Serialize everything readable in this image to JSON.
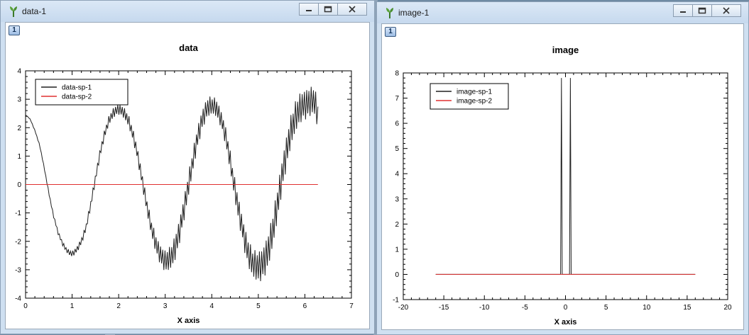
{
  "windows": [
    {
      "title": "data-1",
      "layer_label": "1",
      "graph_title": "data",
      "xlabel": "X axis"
    },
    {
      "title": "image-1",
      "layer_label": "1",
      "graph_title": "image",
      "xlabel": "X axis"
    }
  ],
  "chart_data": [
    {
      "type": "line",
      "title": "data",
      "xlabel": "X axis",
      "ylabel": "",
      "xlim": [
        0,
        7
      ],
      "ylim": [
        -4,
        4
      ],
      "xticks": [
        "0",
        "1",
        "2",
        "3",
        "4",
        "5",
        "6",
        "7"
      ],
      "yticks": [
        "-4",
        "-3",
        "-2",
        "-1",
        "0",
        "1",
        "2",
        "3",
        "4"
      ],
      "grid": false,
      "legend_position": "top-left",
      "series": [
        {
          "name": "data-sp-1",
          "color": "#202020",
          "x": [
            0,
            0.1,
            0.2,
            0.3,
            0.4,
            0.5,
            0.6,
            0.7,
            0.8,
            0.9,
            1.0,
            1.1,
            1.2,
            1.3,
            1.4,
            1.5,
            1.6,
            1.7,
            1.8,
            1.9,
            2.0,
            2.1,
            2.2,
            2.3,
            2.4,
            2.5,
            2.6,
            2.7,
            2.8,
            2.9,
            3.0,
            3.1,
            3.2,
            3.3,
            3.4,
            3.5,
            3.6,
            3.7,
            3.8,
            3.9,
            4.0,
            4.1,
            4.2,
            4.3,
            4.4,
            4.5,
            4.6,
            4.7,
            4.8,
            4.9,
            5.0,
            5.1,
            5.2,
            5.3,
            5.4,
            5.5,
            5.6,
            5.7,
            5.8,
            5.9,
            6.0,
            6.1,
            6.2,
            6.28
          ],
          "y": [
            2.45,
            2.3,
            1.9,
            1.4,
            0.6,
            -0.3,
            -1.1,
            -1.7,
            -2.1,
            -2.35,
            -2.45,
            -2.3,
            -2.0,
            -1.5,
            -0.7,
            0.2,
            1.1,
            1.8,
            2.3,
            2.55,
            2.65,
            2.55,
            2.3,
            1.8,
            1.1,
            0.2,
            -0.7,
            -1.5,
            -2.1,
            -2.5,
            -2.7,
            -2.6,
            -2.3,
            -1.7,
            -0.9,
            0.0,
            0.9,
            1.7,
            2.3,
            2.7,
            2.8,
            2.7,
            2.3,
            1.7,
            0.8,
            -0.2,
            -1.1,
            -1.9,
            -2.5,
            -2.8,
            -2.9,
            -2.8,
            -2.4,
            -1.7,
            -0.8,
            0.2,
            1.1,
            1.9,
            2.4,
            2.7,
            2.8,
            2.9,
            3.0,
            2.4
          ],
          "noise_amplitude_by_x": [
            [
              0,
              0
            ],
            [
              0.6,
              0.05
            ],
            [
              1.0,
              0.1
            ],
            [
              1.6,
              0.15
            ],
            [
              2.6,
              0.25
            ],
            [
              3.2,
              0.45
            ],
            [
              4.2,
              0.3
            ],
            [
              5.2,
              0.6
            ],
            [
              6.28,
              0.5
            ]
          ]
        },
        {
          "name": "data-sp-2",
          "color": "#e03030",
          "x": [
            0,
            6.28
          ],
          "y": [
            0,
            0
          ]
        }
      ]
    },
    {
      "type": "line",
      "title": "image",
      "xlabel": "X axis",
      "ylabel": "",
      "xlim": [
        -20,
        20
      ],
      "ylim": [
        -1,
        8
      ],
      "xticks": [
        "-20",
        "-15",
        "-10",
        "-5",
        "0",
        "5",
        "10",
        "15",
        "20"
      ],
      "yticks": [
        "-1",
        "0",
        "1",
        "2",
        "3",
        "4",
        "5",
        "6",
        "7",
        "8"
      ],
      "grid": false,
      "legend_position": "top-left",
      "series": [
        {
          "name": "image-sp-1",
          "color": "#202020",
          "x": [
            -16,
            -0.6,
            -0.5,
            -0.4,
            0.5,
            0.6,
            0.7,
            16
          ],
          "y": [
            0,
            0,
            7.8,
            0,
            0,
            7.8,
            0,
            0
          ]
        },
        {
          "name": "image-sp-2",
          "color": "#e03030",
          "x": [
            -16,
            16
          ],
          "y": [
            0,
            0
          ]
        }
      ]
    }
  ]
}
